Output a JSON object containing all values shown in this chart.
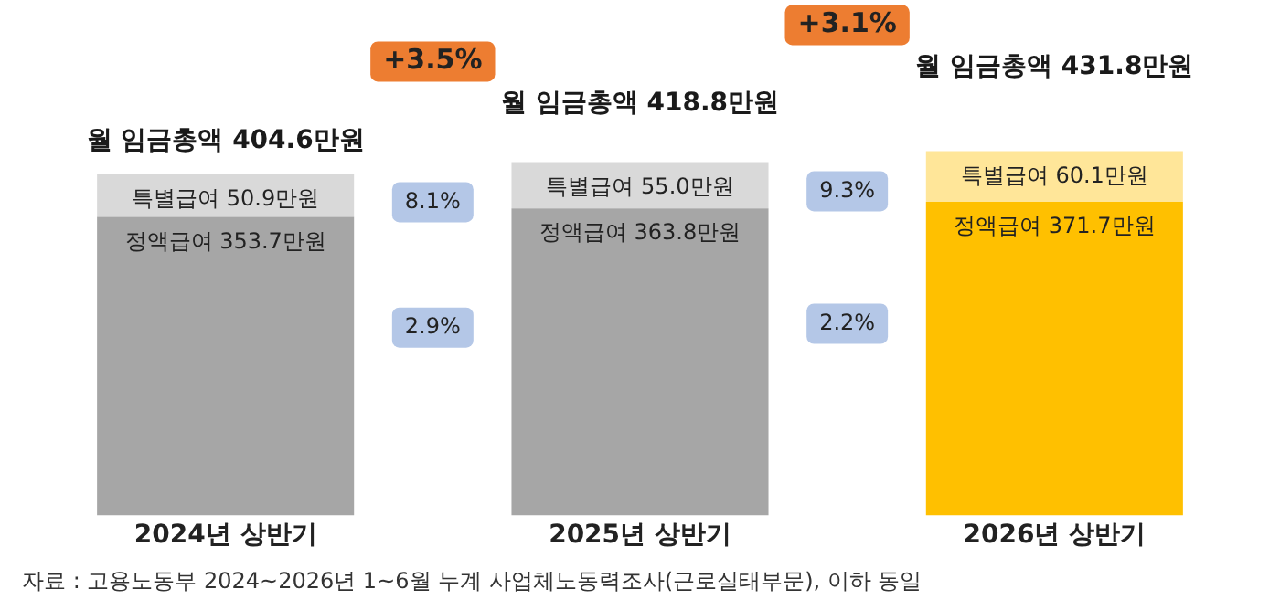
{
  "chart_data": {
    "type": "bar",
    "stacked": true,
    "categories": [
      "2024년 상반기",
      "2025년 상반기",
      "2026년 상반기"
    ],
    "series": [
      {
        "colors": [
          "#a6a6a6",
          "#a6a6a6",
          "#ffc000"
        ],
        "values": [
          353.7,
          363.8,
          371.7
        ],
        "value_labels": [
          "정액급여 353.7만원",
          "정액급여 363.8만원",
          "정액급여 371.7만원"
        ]
      },
      {
        "colors": [
          "#d9d9d9",
          "#d9d9d9",
          "#ffe699"
        ],
        "values": [
          50.9,
          55.0,
          60.1
        ],
        "value_labels": [
          "특별급여 50.9만원",
          "특별급여 55.0만원",
          "특별급여 60.1만원"
        ]
      }
    ],
    "totals": [
      "월 임금총액 404.6만원",
      "월 임금총액 418.8만원",
      "월 임금총액 431.8만원"
    ],
    "annotations": [
      "+3.5%",
      "+3.1%",
      "8.1%",
      "2.9%",
      "9.3%",
      "2.2%",
      "자료 : 고용노동부 2024~2026년 1~6월 누계 사업체노동력조사(근로실태부문), 이하 동일"
    ],
    "legend": false,
    "grid": false
  }
}
